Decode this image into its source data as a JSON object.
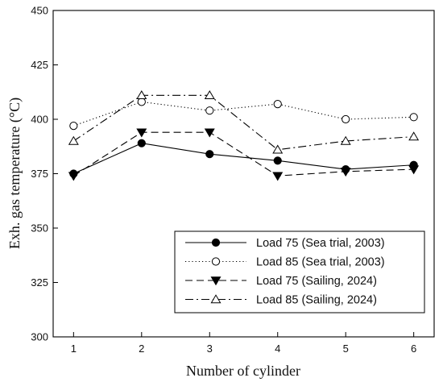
{
  "chart_data": {
    "type": "line",
    "x": [
      1,
      2,
      3,
      4,
      5,
      6
    ],
    "xlabel": "Number of cylinder",
    "ylabel": "Exh. gas temperature (°C)",
    "xlim": [
      0.7,
      6.3
    ],
    "ylim": [
      300,
      450
    ],
    "xticks": [
      1,
      2,
      3,
      4,
      5,
      6
    ],
    "yticks": [
      300,
      325,
      350,
      375,
      400,
      425,
      450
    ],
    "grid": false,
    "legend_position": "bottom-right",
    "series": [
      {
        "name": "Load 75 (Sea trial, 2003)",
        "values": [
          375,
          389,
          384,
          381,
          377,
          379
        ],
        "line_style": "solid",
        "marker": "filled-circle",
        "color": "#000000"
      },
      {
        "name": "Load 85 (Sea trial, 2003)",
        "values": [
          397,
          408,
          404,
          407,
          400,
          401
        ],
        "line_style": "dotted",
        "marker": "open-circle",
        "color": "#000000"
      },
      {
        "name": "Load 75 (Sailing, 2024)",
        "values": [
          374,
          394,
          394,
          374,
          376,
          377
        ],
        "line_style": "dashed",
        "marker": "filled-triangle-down",
        "color": "#000000"
      },
      {
        "name": "Load 85 (Sailing, 2024)",
        "values": [
          390,
          411,
          411,
          386,
          390,
          392
        ],
        "line_style": "dash-dot",
        "marker": "open-triangle-up",
        "color": "#000000"
      }
    ]
  }
}
